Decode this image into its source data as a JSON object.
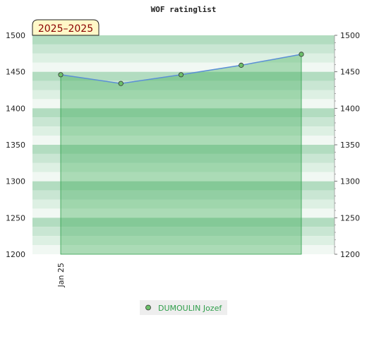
{
  "chart_data": {
    "type": "area",
    "title": "WOF ratinglist",
    "period_label": "2025–2025",
    "x_tick_labels": [
      "Jan 25"
    ],
    "y_tick_labels": [
      "1200",
      "1250",
      "1300",
      "1350",
      "1400",
      "1450",
      "1500"
    ],
    "ylim": [
      1200,
      1500
    ],
    "y_major_step": 50,
    "y_minor_step": 10,
    "grid": "horizontal bands",
    "legend_position": "bottom-center",
    "series": [
      {
        "name": "DUMOULIN Jozef",
        "values": [
          1446,
          1434,
          1446,
          1459,
          1474
        ]
      }
    ],
    "colors": {
      "line": "#5b8fd6",
      "fill": "#3aaa55",
      "point": "#6cc06a",
      "band_dark": "#b2dcc0",
      "band_light": "#f1f8f3",
      "badge_bg": "#fff8c8"
    }
  }
}
